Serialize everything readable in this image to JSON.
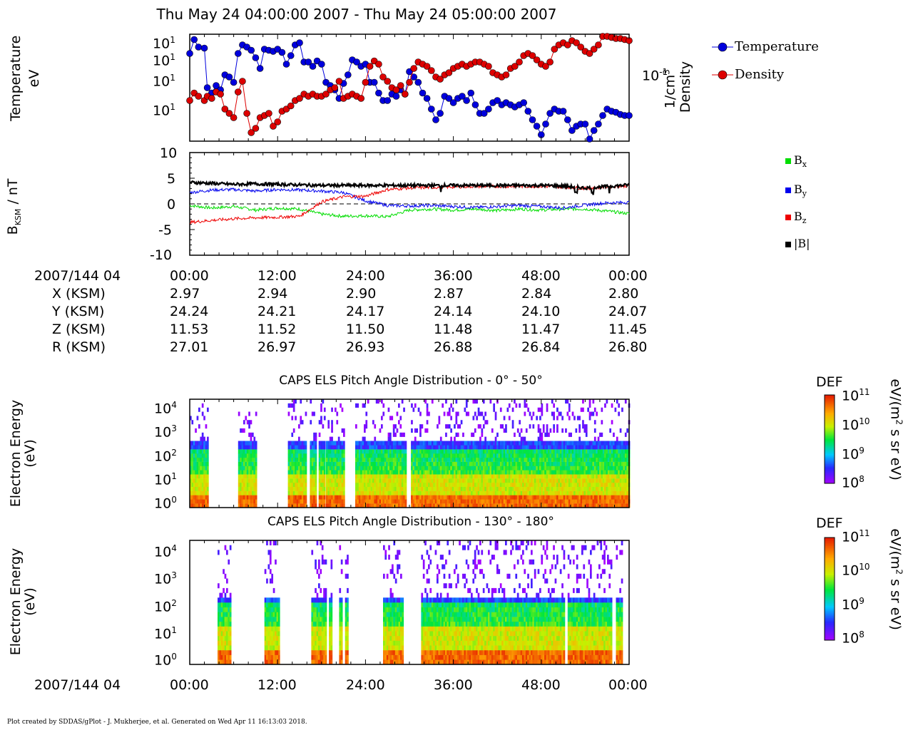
{
  "title": "Thu May 24 04:00:00 2007 - Thu May 24 05:00:00 2007",
  "panels": {
    "temp_density": {
      "ylabel_left_1": "Temperature",
      "ylabel_left_2": "eV",
      "ylabel_right_1": "Density",
      "ylabel_right_2": "1/cm",
      "ylabel_right_sup": "3",
      "left_ticks": [
        {
          "base": "10",
          "exp": "1"
        },
        {
          "base": "10",
          "exp": "1"
        },
        {
          "base": "10",
          "exp": "1"
        },
        {
          "base": "10",
          "exp": "1"
        }
      ],
      "right_tick": {
        "base": "10",
        "exp": "-1"
      },
      "legend": [
        "Temperature",
        "Density"
      ],
      "colors": {
        "temperature": "#0000dd",
        "density": "#dd0000"
      }
    },
    "bfield": {
      "ylabel": "B",
      "ylabel_sub": "KSM",
      "ylabel_rest": " / nT",
      "ticks": [
        "10",
        "5",
        "0",
        "-5",
        "-10"
      ],
      "legend": [
        {
          "label": "B",
          "sub": "x",
          "color": "#00dd00"
        },
        {
          "label": "B",
          "sub": "y",
          "color": "#0000ee"
        },
        {
          "label": "B",
          "sub": "z",
          "color": "#ee0000"
        },
        {
          "label": "|B|",
          "sub": "",
          "color": "#000000"
        }
      ]
    },
    "els1": {
      "subtitle": "CAPS ELS Pitch Angle Distribution - 0° - 50°",
      "ylabel_1": "Electron Energy",
      "ylabel_2": "(eV)",
      "colorbar_label": "DEF",
      "colorbar_units": "eV/(m",
      "colorbar_units_sup": "2",
      "colorbar_units_rest": " s sr eV)"
    },
    "els2": {
      "subtitle": "CAPS ELS Pitch Angle Distribution - 130° - 180°",
      "ylabel_1": "Electron Energy",
      "ylabel_2": "(eV)",
      "colorbar_label": "DEF",
      "colorbar_units": "eV/(m",
      "colorbar_units_sup": "2",
      "colorbar_units_rest": " s sr eV)"
    }
  },
  "energy_ticks": [
    {
      "base": "10",
      "exp": "4"
    },
    {
      "base": "10",
      "exp": "3"
    },
    {
      "base": "10",
      "exp": "2"
    },
    {
      "base": "10",
      "exp": "1"
    },
    {
      "base": "10",
      "exp": "0"
    }
  ],
  "colorbar_ticks": [
    {
      "base": "10",
      "exp": "11"
    },
    {
      "base": "10",
      "exp": "10"
    },
    {
      "base": "10",
      "exp": "9"
    },
    {
      "base": "10",
      "exp": "8"
    }
  ],
  "ephemeris": {
    "date_label": "2007/144 04",
    "times": [
      "00:00",
      "12:00",
      "24:00",
      "36:00",
      "48:00",
      "00:00"
    ],
    "rows": [
      {
        "label": "X (KSM)",
        "values": [
          "2.97",
          "2.94",
          "2.90",
          "2.87",
          "2.84",
          "2.80"
        ]
      },
      {
        "label": "Y (KSM)",
        "values": [
          "24.24",
          "24.21",
          "24.17",
          "24.14",
          "24.10",
          "24.07"
        ]
      },
      {
        "label": "Z (KSM)",
        "values": [
          "11.53",
          "11.52",
          "11.50",
          "11.48",
          "11.47",
          "11.45"
        ]
      },
      {
        "label": "R (KSM)",
        "values": [
          "27.01",
          "26.97",
          "26.93",
          "26.88",
          "26.84",
          "26.80"
        ]
      }
    ]
  },
  "bottom_axis": {
    "date_label": "2007/144 04",
    "times": [
      "00:00",
      "12:00",
      "24:00",
      "36:00",
      "48:00",
      "00:00"
    ]
  },
  "footer": "Plot created by SDDAS/gPlot - J. Mukherjee, et al.  Generated on Wed Apr 11 16:13:03 2018.",
  "chart_data": [
    {
      "type": "scatter",
      "title": "",
      "xlabel": "",
      "ylabel": "Temperature eV",
      "x_range_min": [
        0,
        60
      ],
      "series": [
        {
          "name": "Temperature",
          "x": [
            0,
            0.6,
            1.2,
            2,
            2.4,
            3,
            3.6,
            4.2,
            4.8,
            5.4,
            6,
            6.6,
            7.2,
            7.8,
            8.4,
            9,
            9.6,
            10.2,
            10.8,
            11.4,
            12,
            12.6,
            13.2,
            13.8,
            14.4,
            15,
            15.6,
            16.2,
            16.8,
            17.4,
            18,
            18.6,
            19.2,
            19.8,
            20.4,
            21,
            21.6,
            22.2,
            22.8,
            23.4,
            24,
            24.6,
            25.2,
            25.8,
            26.4,
            27,
            27.6,
            28.2,
            28.8,
            29.4,
            30,
            30.6,
            31.2,
            31.8,
            32.4,
            33,
            33.6,
            34.2,
            34.8,
            35.4,
            36,
            36.6,
            37.2,
            37.8,
            38.4,
            39,
            39.6,
            40.2,
            40.8,
            41.4,
            42,
            42.6,
            43.2,
            43.8,
            44.4,
            45,
            45.6,
            46.2,
            46.8,
            47.4,
            48,
            48.6,
            49.2,
            49.8,
            50.4,
            51,
            51.6,
            52.2,
            52.8,
            53.4,
            54,
            54.6,
            55.2,
            55.8,
            56.4,
            57,
            57.6,
            58.2,
            58.8,
            59.4,
            60
          ],
          "y": [
            0.82,
            0.95,
            0.88,
            0.87,
            0.5,
            0.45,
            0.52,
            0.48,
            0.62,
            0.6,
            0.55,
            0.82,
            0.9,
            0.88,
            0.85,
            0.78,
            0.68,
            0.86,
            0.85,
            0.84,
            0.86,
            0.83,
            0.72,
            0.8,
            0.9,
            0.92,
            0.74,
            0.74,
            0.7,
            0.75,
            0.72,
            0.55,
            0.52,
            0.48,
            0.4,
            0.54,
            0.62,
            0.76,
            0.74,
            0.7,
            0.72,
            0.55,
            0.55,
            0.45,
            0.38,
            0.38,
            0.44,
            0.42,
            0.48,
            0.44,
            0.65,
            0.6,
            0.55,
            0.45,
            0.4,
            0.3,
            0.2,
            0.26,
            0.42,
            0.4,
            0.36,
            0.4,
            0.42,
            0.38,
            0.45,
            0.34,
            0.26,
            0.26,
            0.3,
            0.36,
            0.38,
            0.34,
            0.36,
            0.34,
            0.32,
            0.34,
            0.36,
            0.28,
            0.2,
            0.14,
            0.06,
            0.16,
            0.26,
            0.3,
            0.28,
            0.28,
            0.2,
            0.1,
            0.14,
            0.16,
            0.16,
            0.02,
            0.1,
            0.16,
            0.24,
            0.3,
            0.28,
            0.27,
            0.25,
            0.24,
            0.24
          ]
        },
        {
          "name": "Density",
          "x": [
            0,
            0.6,
            1.2,
            2,
            2.4,
            3,
            3.6,
            4.2,
            4.8,
            5.4,
            6,
            6.6,
            7.2,
            7.8,
            8.4,
            9,
            9.6,
            10.2,
            10.8,
            11.4,
            12,
            12.6,
            13.2,
            13.8,
            14.4,
            15,
            15.6,
            16.2,
            16.8,
            17.4,
            18,
            18.6,
            19.2,
            19.8,
            20.4,
            21,
            21.6,
            22.2,
            22.8,
            23.4,
            24,
            24.6,
            25.2,
            25.8,
            26.4,
            27,
            27.6,
            28.2,
            28.8,
            29.4,
            30,
            30.6,
            31.2,
            31.8,
            32.4,
            33,
            33.6,
            34.2,
            34.8,
            35.4,
            36,
            36.6,
            37.2,
            37.8,
            38.4,
            39,
            39.6,
            40.2,
            40.8,
            41.4,
            42,
            42.6,
            43.2,
            43.8,
            44.4,
            45,
            45.6,
            46.2,
            46.8,
            47.4,
            48,
            48.6,
            49.2,
            49.8,
            50.4,
            51,
            51.6,
            52.2,
            52.8,
            53.4,
            54,
            54.6,
            55.2,
            55.8,
            56.4,
            57,
            57.6,
            58.2,
            58.8,
            59.4,
            60
          ],
          "y": [
            0.38,
            0.45,
            0.42,
            0.38,
            0.42,
            0.4,
            0.46,
            0.44,
            0.3,
            0.26,
            0.22,
            0.46,
            0.56,
            0.26,
            0.08,
            0.12,
            0.22,
            0.24,
            0.26,
            0.14,
            0.18,
            0.28,
            0.3,
            0.33,
            0.38,
            0.4,
            0.44,
            0.42,
            0.44,
            0.42,
            0.42,
            0.44,
            0.48,
            0.5,
            0.56,
            0.4,
            0.42,
            0.44,
            0.42,
            0.4,
            0.55,
            0.7,
            0.75,
            0.72,
            0.6,
            0.56,
            0.5,
            0.48,
            0.52,
            0.44,
            0.55,
            0.68,
            0.74,
            0.72,
            0.7,
            0.66,
            0.6,
            0.58,
            0.62,
            0.64,
            0.68,
            0.7,
            0.72,
            0.7,
            0.72,
            0.74,
            0.74,
            0.72,
            0.7,
            0.64,
            0.62,
            0.6,
            0.62,
            0.68,
            0.7,
            0.74,
            0.8,
            0.82,
            0.8,
            0.76,
            0.72,
            0.7,
            0.74,
            0.86,
            0.9,
            0.92,
            0.9,
            0.94,
            0.92,
            0.88,
            0.84,
            0.82,
            0.86,
            0.9,
            0.98,
            0.98,
            0.97,
            0.96,
            0.96,
            0.95,
            0.94
          ]
        }
      ]
    },
    {
      "type": "line",
      "title": "",
      "ylabel": "BKSM / nT",
      "ylim": [
        -10,
        10
      ],
      "x_range_min": [
        0,
        60
      ],
      "series": [
        {
          "name": "Bx",
          "x": [
            0,
            3,
            6,
            9,
            12,
            15,
            18,
            21,
            24,
            27,
            30,
            33,
            36,
            39,
            42,
            45,
            48,
            51,
            54,
            57,
            60
          ],
          "y": [
            -0.3,
            -0.8,
            -0.5,
            -1.2,
            -0.8,
            -1.0,
            -2.0,
            -2.4,
            -2.3,
            -2.5,
            -1.2,
            -1.0,
            -1.2,
            -1.0,
            -1.3,
            -1.0,
            -1.2,
            -1.0,
            -1.0,
            -1.4,
            -1.9
          ]
        },
        {
          "name": "By",
          "x": [
            0,
            3,
            6,
            9,
            12,
            15,
            18,
            21,
            24,
            27,
            30,
            33,
            36,
            39,
            42,
            45,
            48,
            51,
            54,
            57,
            60
          ],
          "y": [
            2.2,
            2.7,
            2.8,
            2.5,
            2.8,
            2.7,
            2.5,
            2.2,
            0.6,
            -0.3,
            -0.4,
            -0.3,
            -0.5,
            -0.7,
            -0.5,
            -0.3,
            -0.5,
            -0.8,
            -0.2,
            0.2,
            0.3
          ]
        },
        {
          "name": "Bz",
          "x": [
            0,
            3,
            6,
            9,
            12,
            15,
            18,
            21,
            24,
            27,
            30,
            33,
            36,
            39,
            42,
            45,
            48,
            51,
            54,
            57,
            60
          ],
          "y": [
            -3.6,
            -3.2,
            -2.9,
            -2.7,
            -2.6,
            -2.4,
            0.4,
            1.4,
            1.5,
            2.8,
            3.1,
            3.2,
            3.3,
            3.4,
            3.4,
            3.4,
            3.4,
            3.3,
            3.0,
            3.3,
            3.5
          ]
        },
        {
          "name": "|B|",
          "x": [
            0,
            3,
            6,
            9,
            12,
            15,
            18,
            21,
            24,
            27,
            30,
            33,
            36,
            39,
            42,
            45,
            48,
            51,
            54,
            57,
            60
          ],
          "y": [
            4.2,
            4.0,
            3.8,
            3.9,
            3.8,
            3.7,
            3.6,
            3.6,
            3.6,
            3.6,
            3.6,
            3.6,
            3.6,
            3.6,
            3.6,
            3.6,
            3.6,
            3.5,
            3.1,
            3.4,
            3.7
          ]
        }
      ]
    },
    {
      "type": "heatmap",
      "title": "CAPS ELS Pitch Angle Distribution - 0° - 50°",
      "ylabel": "Electron Energy (eV)",
      "y_scale": "log",
      "ylim": [
        1,
        20000
      ],
      "colorbar": {
        "label": "DEF",
        "units": "eV/(m2 s sr eV)",
        "range": [
          100000000.0,
          100000000000.0
        ]
      },
      "data_segments_min": [
        [
          0,
          2.5
        ],
        [
          6.6,
          9.0
        ],
        [
          13.4,
          15.8
        ],
        [
          16.4,
          17.2
        ],
        [
          17.6,
          18.4
        ],
        [
          18.6,
          21.0
        ],
        [
          22.6,
          29.6
        ],
        [
          30.2,
          56.4
        ],
        [
          56.6,
          60
        ]
      ]
    },
    {
      "type": "heatmap",
      "title": "CAPS ELS Pitch Angle Distribution - 130° - 180°",
      "ylabel": "Electron Energy (eV)",
      "y_scale": "log",
      "ylim": [
        1,
        20000
      ],
      "colorbar": {
        "label": "DEF",
        "units": "eV/(m2 s sr eV)",
        "range": [
          100000000.0,
          100000000000.0
        ]
      },
      "data_segments_min": [
        [
          3.8,
          5.6
        ],
        [
          10.2,
          12.2
        ],
        [
          16.6,
          18.6
        ],
        [
          19.0,
          19.4
        ],
        [
          20.4,
          20.8
        ],
        [
          21.2,
          21.6
        ],
        [
          26.4,
          29.2
        ],
        [
          31.6,
          51.2
        ],
        [
          51.6,
          57.6
        ],
        [
          58.2,
          59.0
        ]
      ]
    }
  ]
}
